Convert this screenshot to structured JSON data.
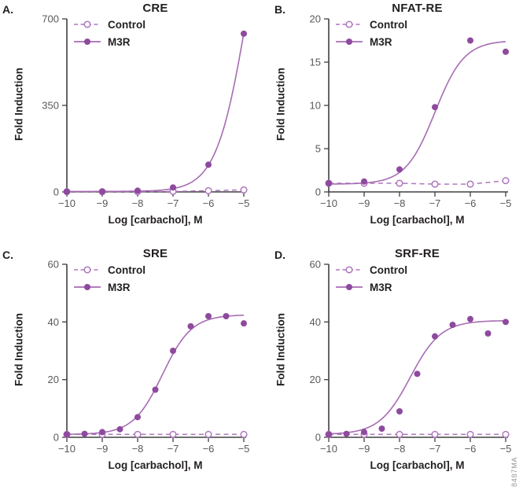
{
  "figure": {
    "watermark": "8487MA",
    "colors": {
      "m3r_marker": "#8E4A9E",
      "m3r_curve": "#A76CB4",
      "control": "#AF77BF",
      "axis": "#404042",
      "tick_text": "#58595B",
      "text": "#231F20",
      "watermark_text": "#939598"
    }
  },
  "chart_data": [
    {
      "panel": "A.",
      "type": "scatter",
      "title": "CRE",
      "xlabel": "Log [carbachol], M",
      "ylabel": "Fold Induction",
      "xlim": [
        -10,
        -5
      ],
      "xticks": [
        -10,
        -9,
        -8,
        -7,
        -6,
        -5
      ],
      "ylim": [
        0,
        700
      ],
      "yticks": [
        0,
        350,
        700
      ],
      "grid": false,
      "legend_position": "top-left-inside",
      "series": [
        {
          "name": "Control",
          "style": "dashed-open-circle",
          "x": [
            -10,
            -9,
            -8,
            -7,
            -6,
            -5
          ],
          "y": [
            1,
            1,
            1,
            2,
            5,
            8
          ]
        },
        {
          "name": "M3R",
          "style": "solid-filled-circle",
          "x": [
            -10,
            -9,
            -8,
            -7,
            -6,
            -5
          ],
          "y": [
            1,
            1,
            5,
            18,
            110,
            640
          ],
          "fit": {
            "bottom": 2,
            "top": 1450,
            "logec50": -4.9,
            "hill": 1
          }
        }
      ]
    },
    {
      "panel": "B.",
      "type": "scatter",
      "title": "NFAT-RE",
      "xlabel": "Log [carbachol], M",
      "ylabel": "Fold Induction",
      "xlim": [
        -10,
        -5
      ],
      "xticks": [
        -10,
        -9,
        -8,
        -7,
        -6,
        -5
      ],
      "ylim": [
        0,
        20
      ],
      "yticks": [
        0,
        5,
        10,
        15,
        20
      ],
      "grid": false,
      "legend_position": "top-left-inside",
      "series": [
        {
          "name": "Control",
          "style": "dashed-open-circle",
          "x": [
            -10,
            -9,
            -8,
            -7,
            -6,
            -5
          ],
          "y": [
            1,
            1,
            1,
            0.9,
            0.9,
            1.3
          ]
        },
        {
          "name": "M3R",
          "style": "solid-filled-circle",
          "x": [
            -10,
            -9,
            -8,
            -7,
            -6,
            -5
          ],
          "y": [
            1,
            1.2,
            2.6,
            9.8,
            17.5,
            16.2
          ],
          "fit": {
            "bottom": 0.9,
            "top": 17.5,
            "logec50": -7.0,
            "hill": 1.05
          }
        }
      ]
    },
    {
      "panel": "C.",
      "type": "scatter",
      "title": "SRE",
      "xlabel": "Log [carbachol], M",
      "ylabel": "Fold Induction",
      "xlim": [
        -10,
        -5
      ],
      "xticks": [
        -10,
        -9,
        -8,
        -7,
        -6,
        -5
      ],
      "ylim": [
        0,
        60
      ],
      "yticks": [
        0,
        20,
        40,
        60
      ],
      "grid": false,
      "legend_position": "top-left-inside",
      "series": [
        {
          "name": "Control",
          "style": "dashed-open-circle",
          "x": [
            -10,
            -9,
            -8,
            -7,
            -6,
            -5
          ],
          "y": [
            1,
            1,
            1,
            1,
            1,
            1
          ]
        },
        {
          "name": "M3R",
          "style": "solid-filled-circle",
          "x": [
            -10,
            -9.5,
            -9,
            -8.5,
            -8,
            -7.5,
            -7,
            -6.5,
            -6,
            -5.5,
            -5
          ],
          "y": [
            1,
            1.2,
            1.8,
            2.8,
            7,
            16.5,
            30,
            38.5,
            42,
            42,
            39.5
          ],
          "fit": {
            "bottom": 1,
            "top": 42.5,
            "logec50": -7.3,
            "hill": 1.05
          }
        }
      ]
    },
    {
      "panel": "D.",
      "type": "scatter",
      "title": "SRF-RE",
      "xlabel": "Log [carbachol], M",
      "ylabel": "Fold Induction",
      "xlim": [
        -10,
        -5
      ],
      "xticks": [
        -10,
        -9,
        -8,
        -7,
        -6,
        -5
      ],
      "ylim": [
        0,
        60
      ],
      "yticks": [
        0,
        20,
        40,
        60
      ],
      "grid": false,
      "legend_position": "top-left-inside",
      "series": [
        {
          "name": "Control",
          "style": "dashed-open-circle",
          "x": [
            -10,
            -9,
            -8,
            -7,
            -6,
            -5
          ],
          "y": [
            1,
            1,
            1,
            1,
            1,
            1
          ]
        },
        {
          "name": "M3R",
          "style": "solid-filled-circle",
          "x": [
            -10,
            -9.5,
            -9,
            -8.5,
            -8,
            -7.5,
            -7,
            -6.5,
            -6,
            -5.5,
            -5
          ],
          "y": [
            1,
            1.2,
            1.8,
            3,
            9,
            22,
            35,
            39,
            41,
            36,
            40
          ],
          "fit": {
            "bottom": 1,
            "top": 40.5,
            "logec50": -7.7,
            "hill": 1
          }
        }
      ]
    }
  ]
}
